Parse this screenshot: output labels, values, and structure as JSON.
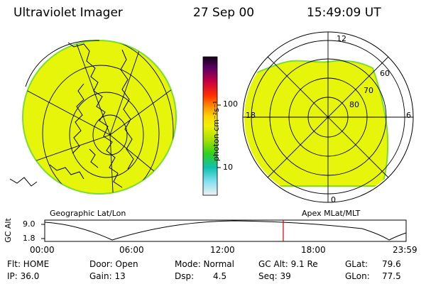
{
  "header": {
    "instrument": "Ultraviolet Imager",
    "date": "27 Sep 00",
    "time": "15:49:09 UT"
  },
  "colorbar": {
    "unit_label": "photon cm⁻²s⁻¹",
    "ticks": [
      "100",
      "10"
    ]
  },
  "polar_plot": {
    "mlt_labels": [
      "12",
      "18",
      "6",
      "0"
    ],
    "lat_labels": [
      "60",
      "70",
      "80"
    ]
  },
  "panel_labels": {
    "left": "Geographic Lat/Lon",
    "right": "Apex MLat/MLT"
  },
  "altitude_plot": {
    "axis_label": "GC Alt",
    "y_ticks": [
      "9.0",
      "1.8"
    ],
    "x_ticks": [
      "00:00",
      "06:00",
      "12:00",
      "18:00",
      "23:59"
    ],
    "current_time_fraction": 0.66
  },
  "footer": {
    "flt": "Flt: HOME",
    "ip": "IP: 36.0",
    "door": "Door: Open",
    "gain": "Gain: 13",
    "mode": "Mode: Normal",
    "dsp_label": "Dsp:",
    "dsp_value": "4.5",
    "gc_alt": "GC Alt: 9.1 Re",
    "seq": "Seq: 39",
    "glat_label": "GLat:",
    "glat_value": "79.6",
    "glon_label": "GLon:",
    "glon_value": "77.5"
  },
  "colors": {
    "fill": "#e6f50a",
    "edge": "#7ddc30",
    "marker": "#d40000"
  }
}
